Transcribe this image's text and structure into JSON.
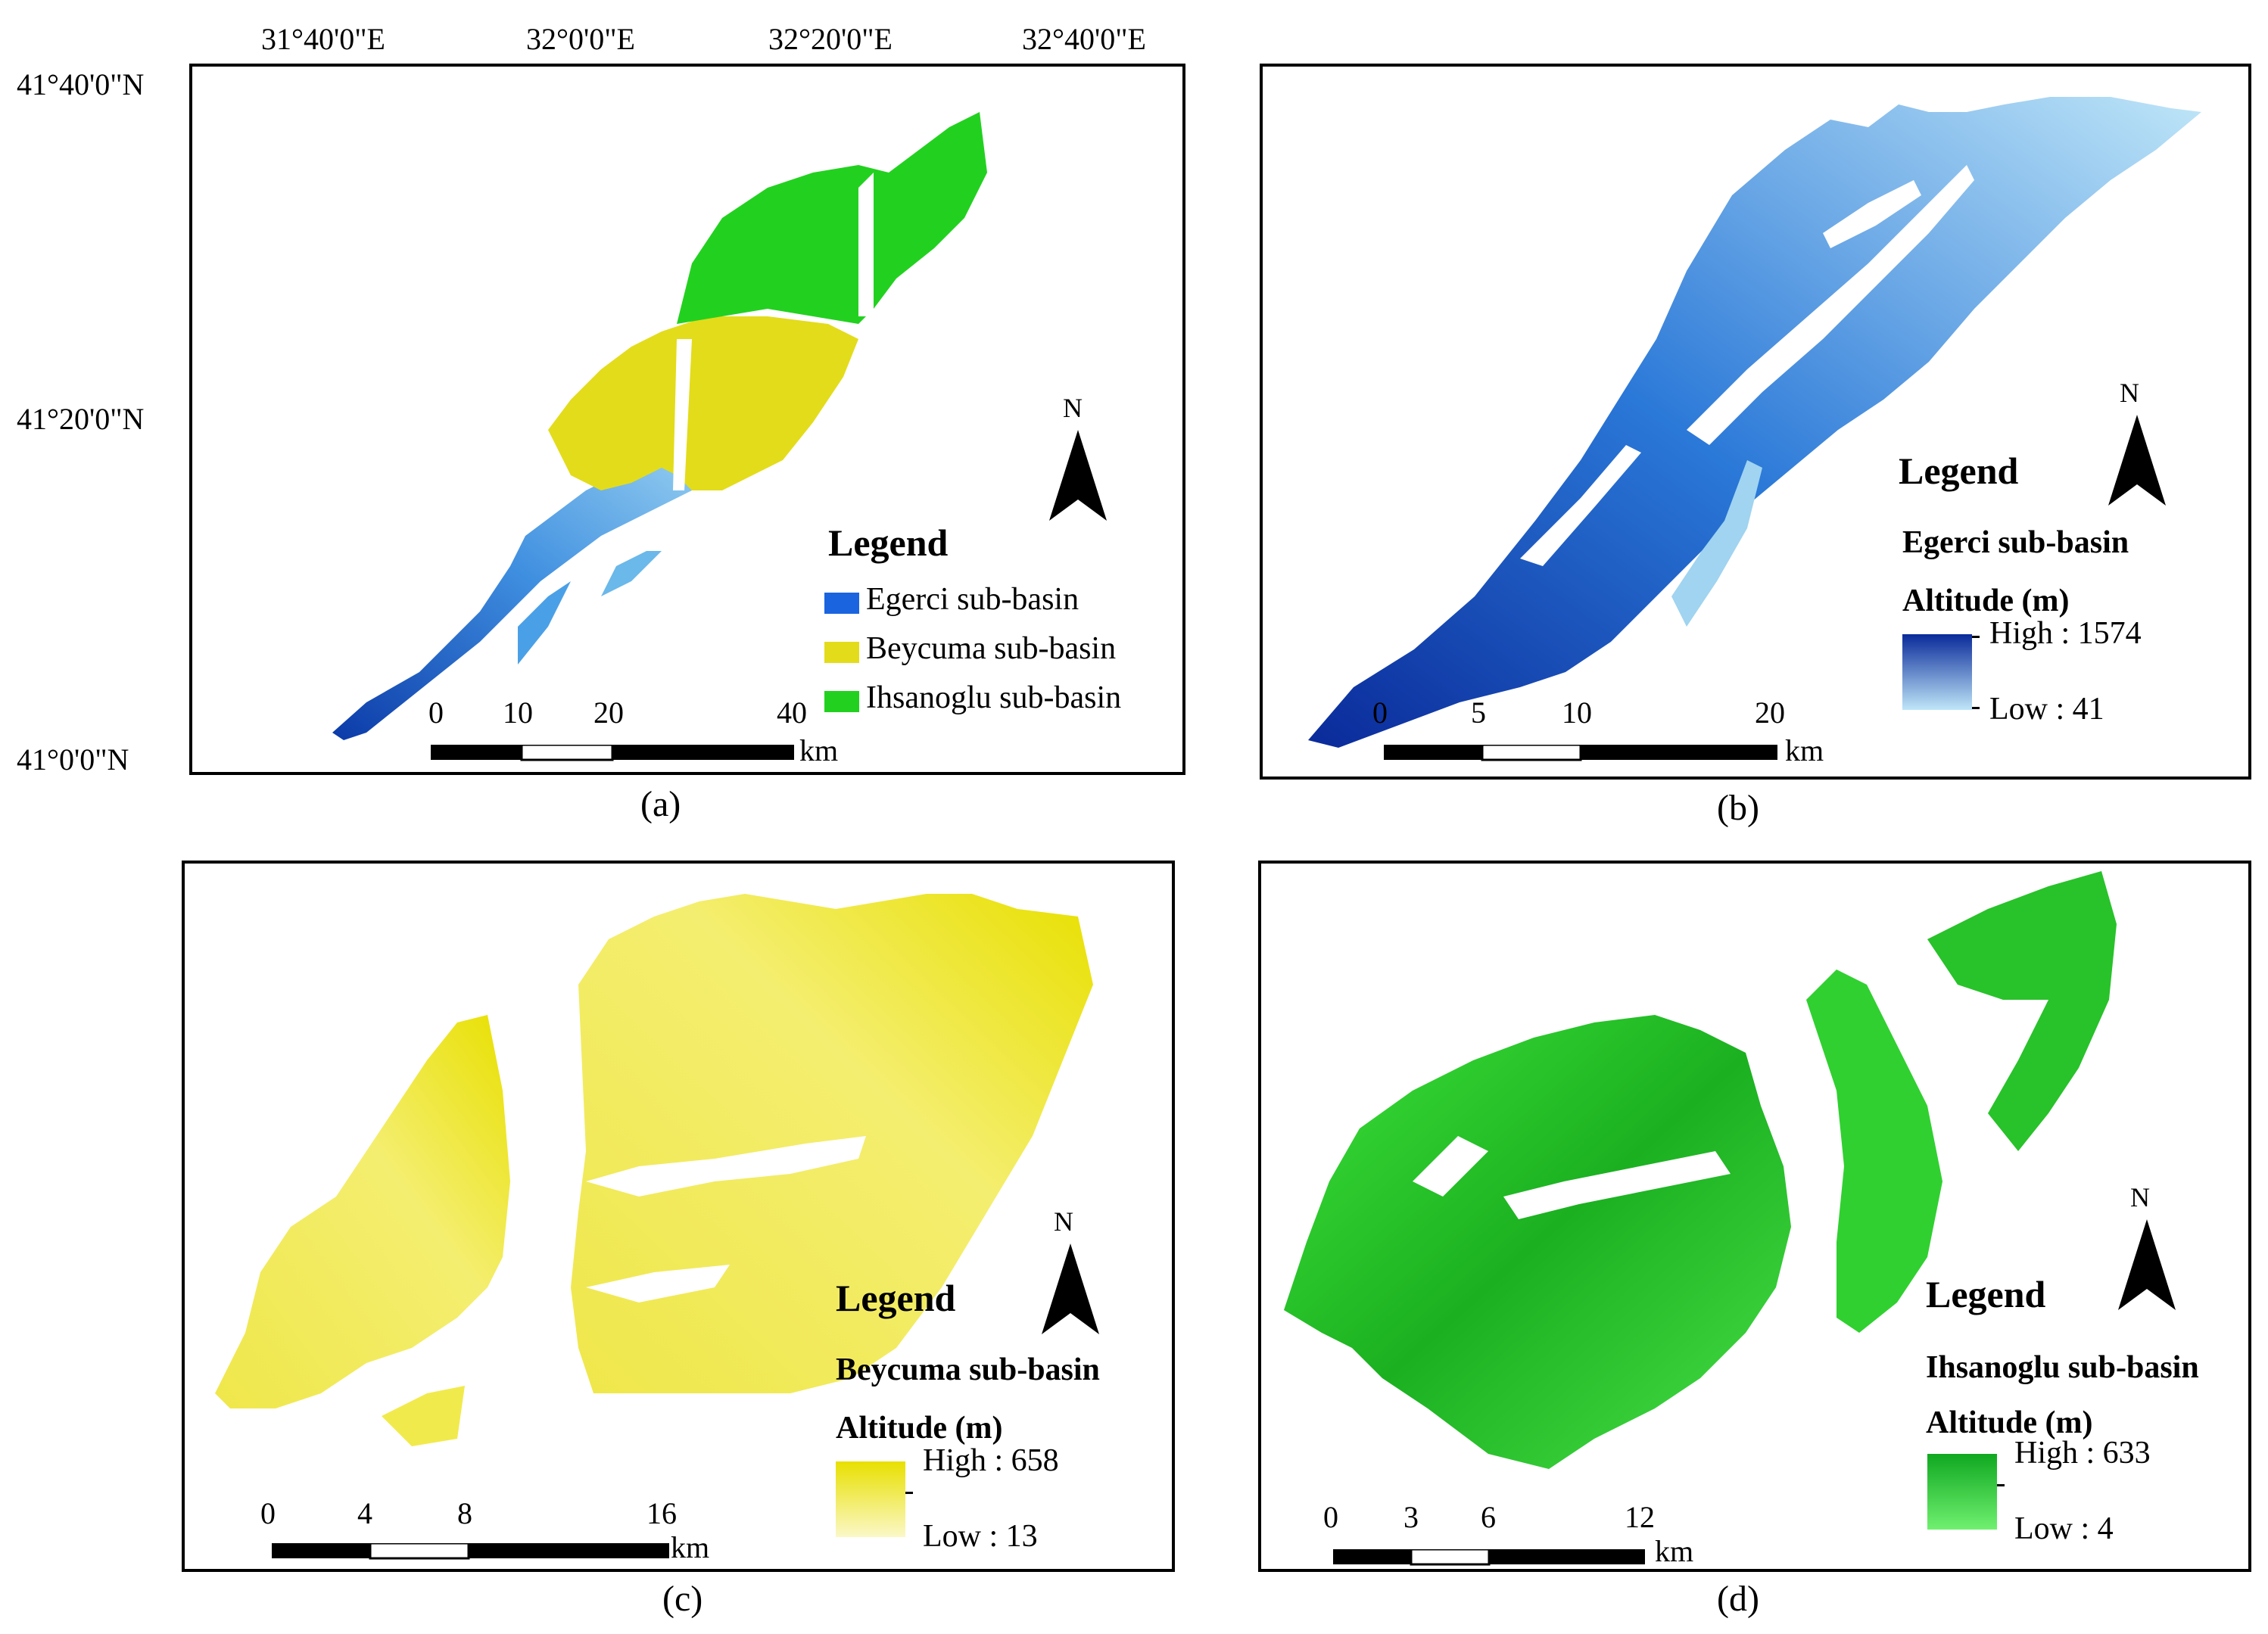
{
  "panels": {
    "a": {
      "caption": "(a)",
      "lon_ticks": [
        "31°40'0\"E",
        "32°0'0\"E",
        "32°20'0\"E",
        "32°40'0\"E"
      ],
      "lat_ticks": [
        "41°40'0\"N",
        "41°20'0\"N",
        "41°0'0\"N"
      ],
      "legend": {
        "title": "Legend",
        "items": [
          {
            "label": "Egerci sub-basin",
            "color": "#1a64e0"
          },
          {
            "label": "Beycuma sub-basin",
            "color": "#e3dc1a"
          },
          {
            "label": "Ihsanoglu sub-basin",
            "color": "#22d11f"
          }
        ]
      },
      "north": "N",
      "scale": {
        "ticks": [
          "0",
          "10",
          "20",
          "40"
        ],
        "unit": "km"
      }
    },
    "b": {
      "caption": "(b)",
      "legend": {
        "title": "Legend",
        "subtitle": "Egerci sub-basin",
        "ramp_title": "Altitude (m)",
        "high": "High : 1574",
        "low": "Low : 41",
        "ramp_colors": [
          "#0a2a9a",
          "#bfe6f8"
        ]
      },
      "north": "N",
      "scale": {
        "ticks": [
          "0",
          "5",
          "10",
          "20"
        ],
        "unit": "km"
      }
    },
    "c": {
      "caption": "(c)",
      "legend": {
        "title": "Legend",
        "subtitle": "Beycuma sub-basin",
        "ramp_title": "Altitude (m)",
        "high": "High : 658",
        "low": "Low : 13",
        "ramp_colors": [
          "#e8e000",
          "#fbf8c8"
        ]
      },
      "north": "N",
      "scale": {
        "ticks": [
          "0",
          "4",
          "8",
          "16"
        ],
        "unit": "km"
      }
    },
    "d": {
      "caption": "(d)",
      "legend": {
        "title": "Legend",
        "subtitle": "Ihsanoglu sub-basin",
        "ramp_title": "Altitude (m)",
        "high": "High : 633",
        "low": "Low : 4",
        "ramp_colors": [
          "#10a820",
          "#70f070"
        ]
      },
      "north": "N",
      "scale": {
        "ticks": [
          "0",
          "3",
          "6",
          "12"
        ],
        "unit": "km"
      }
    }
  }
}
